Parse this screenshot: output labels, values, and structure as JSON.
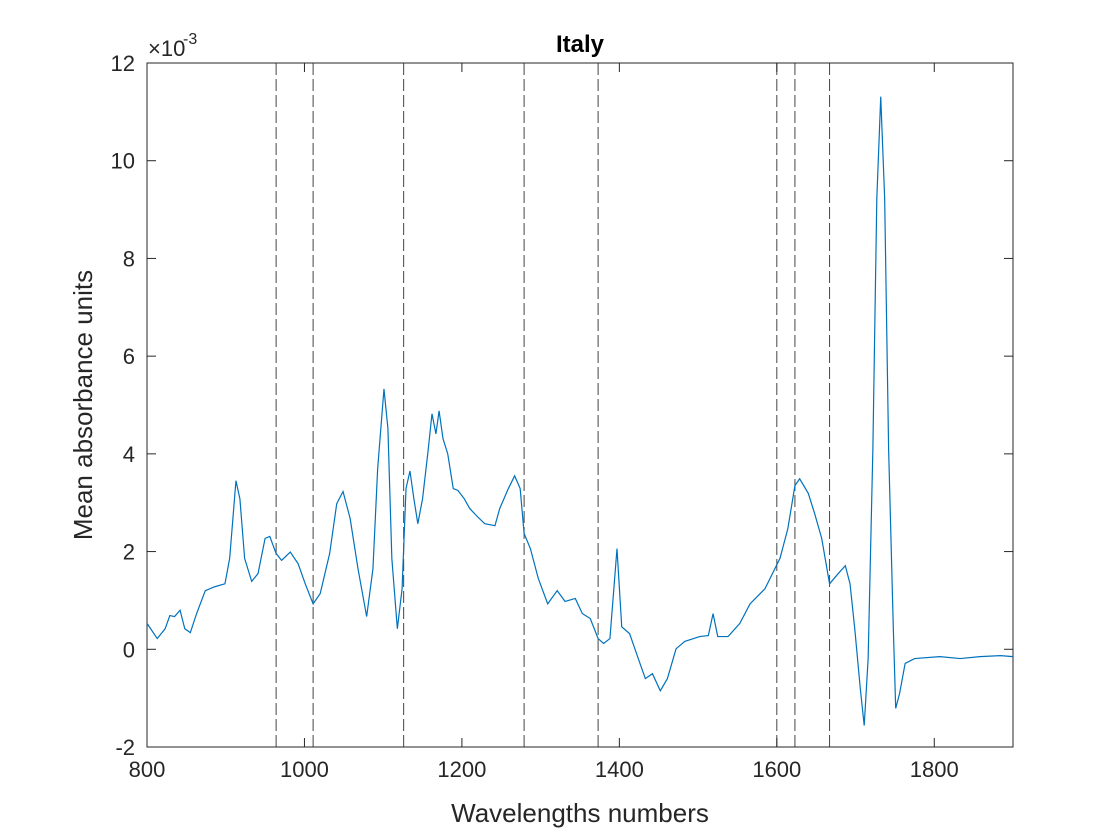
{
  "chart_data": {
    "type": "line",
    "title": "Italy",
    "x_label": "Wavelengths numbers",
    "y_label": "Mean absorbance units",
    "y_multiplier": "×10",
    "y_exponent": "-3",
    "xlim": [
      800,
      1900
    ],
    "ylim": [
      -2,
      12
    ],
    "xticks": [
      800,
      1000,
      1200,
      1400,
      1600,
      1800
    ],
    "yticks": [
      -2,
      0,
      2,
      4,
      6,
      8,
      10,
      12
    ],
    "grid": false,
    "vertical_lines": {
      "color": "#444444",
      "x": [
        964,
        1011,
        1126,
        1279,
        1373,
        1600,
        1623,
        1667
      ]
    },
    "x": [
      800,
      813,
      823,
      829,
      835,
      842,
      848,
      855,
      863,
      874,
      886,
      899,
      905,
      913,
      918,
      924,
      933,
      941,
      950,
      956,
      964,
      971,
      982,
      992,
      1001,
      1011,
      1020,
      1032,
      1041,
      1049,
      1058,
      1068,
      1079,
      1087,
      1093,
      1101,
      1106,
      1111,
      1118,
      1124,
      1129,
      1134,
      1139,
      1144,
      1150,
      1157,
      1162,
      1167,
      1171,
      1176,
      1182,
      1189,
      1195,
      1203,
      1210,
      1220,
      1229,
      1242,
      1248,
      1259,
      1267,
      1274,
      1279,
      1287,
      1297,
      1309,
      1321,
      1331,
      1344,
      1353,
      1363,
      1373,
      1380,
      1388,
      1397,
      1403,
      1413,
      1424,
      1433,
      1442,
      1452,
      1461,
      1472,
      1483,
      1502,
      1513,
      1519,
      1525,
      1538,
      1553,
      1566,
      1585,
      1604,
      1614,
      1623,
      1629,
      1640,
      1648,
      1657,
      1667,
      1678,
      1687,
      1693,
      1699,
      1706,
      1711,
      1716,
      1722,
      1727,
      1732,
      1737,
      1742,
      1748,
      1751,
      1756,
      1763,
      1775,
      1807,
      1833,
      1858,
      1884,
      1900
    ],
    "series": [
      {
        "name": "Italy",
        "color": "#0072bd",
        "values": [
          0.53,
          0.22,
          0.42,
          0.69,
          0.67,
          0.8,
          0.42,
          0.34,
          0.73,
          1.2,
          1.28,
          1.34,
          1.86,
          3.45,
          3.08,
          1.86,
          1.39,
          1.55,
          2.27,
          2.31,
          1.96,
          1.82,
          1.99,
          1.75,
          1.34,
          0.93,
          1.14,
          1.96,
          2.98,
          3.23,
          2.68,
          1.65,
          0.67,
          1.65,
          3.7,
          5.33,
          4.52,
          1.86,
          0.42,
          1.24,
          3.29,
          3.65,
          3.08,
          2.57,
          3.08,
          4.06,
          4.82,
          4.41,
          4.88,
          4.31,
          4.0,
          3.29,
          3.25,
          3.08,
          2.88,
          2.71,
          2.57,
          2.53,
          2.88,
          3.29,
          3.55,
          3.29,
          2.37,
          2.06,
          1.45,
          0.93,
          1.2,
          0.98,
          1.04,
          0.73,
          0.63,
          0.22,
          0.12,
          0.22,
          2.06,
          0.46,
          0.32,
          -0.19,
          -0.6,
          -0.5,
          -0.85,
          -0.6,
          0.01,
          0.16,
          0.26,
          0.28,
          0.73,
          0.26,
          0.26,
          0.53,
          0.93,
          1.24,
          1.86,
          2.47,
          3.35,
          3.49,
          3.19,
          2.78,
          2.27,
          1.34,
          1.55,
          1.71,
          1.34,
          0.42,
          -0.8,
          -1.56,
          -0.19,
          4.1,
          9.22,
          11.31,
          9.22,
          4.1,
          0.42,
          -1.21,
          -0.9,
          -0.29,
          -0.19,
          -0.15,
          -0.19,
          -0.15,
          -0.13,
          -0.15
        ]
      }
    ]
  }
}
